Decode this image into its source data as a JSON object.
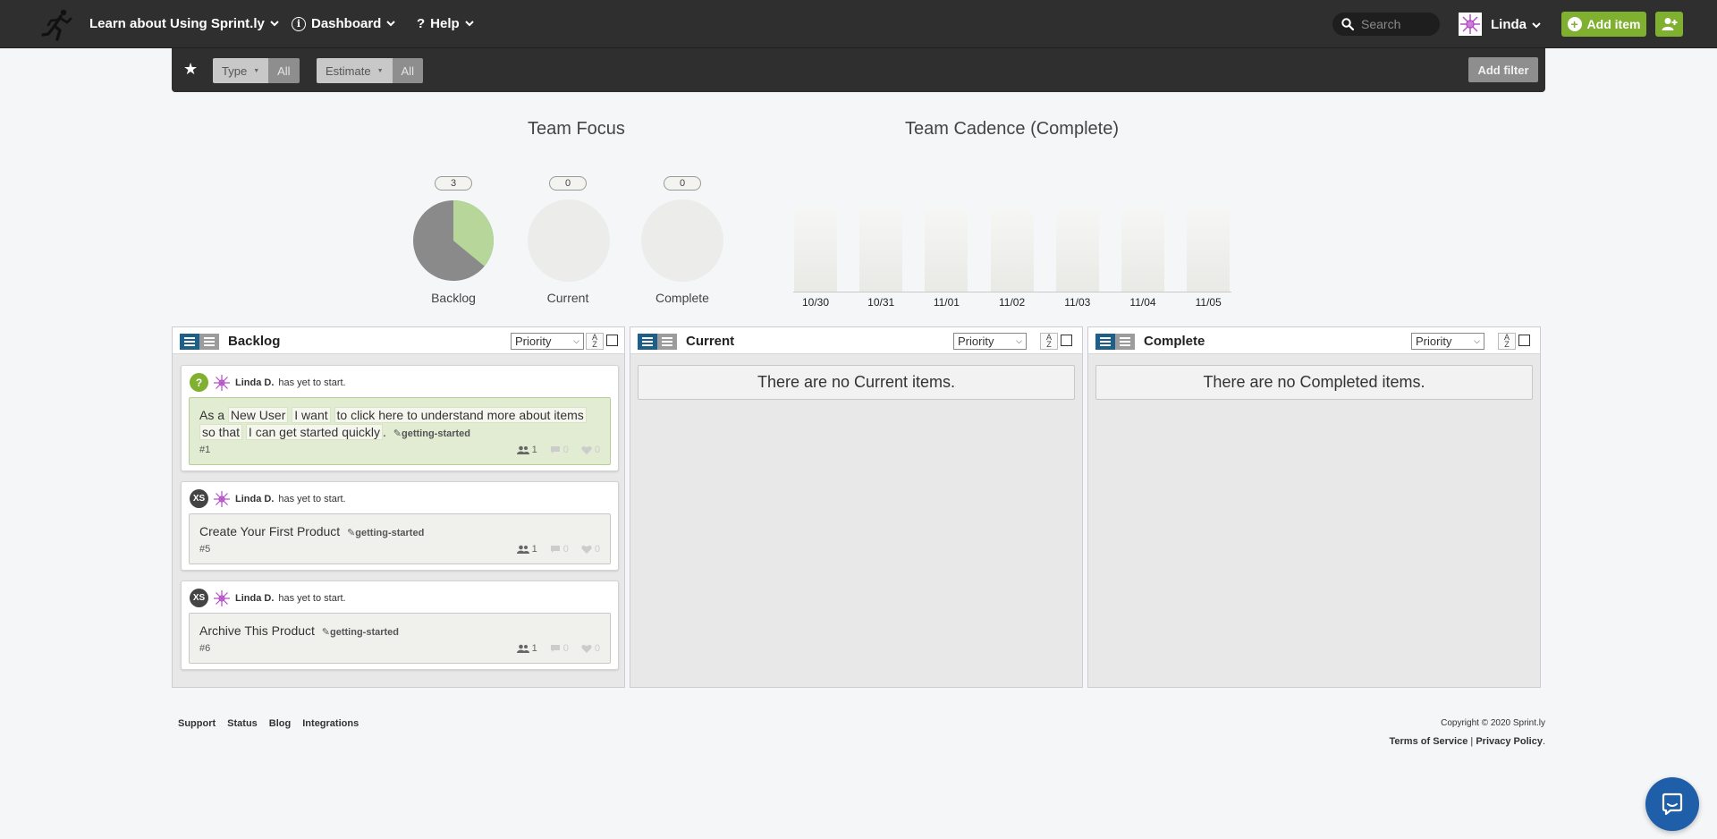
{
  "topnav": {
    "project": "Learn about Using Sprint.ly",
    "dashboard": "Dashboard",
    "help": "Help",
    "search_placeholder": "Search",
    "user": "Linda",
    "add_item": "Add item",
    "accent_color": "#7fb02f"
  },
  "filters": {
    "type_label": "Type",
    "type_value": "All",
    "estimate_label": "Estimate",
    "estimate_value": "All",
    "add_filter": "Add filter"
  },
  "team_focus": {
    "title": "Team Focus",
    "pies": [
      {
        "label": "Backlog",
        "count": "3",
        "fraction_green": 0.36
      },
      {
        "label": "Current",
        "count": "0"
      },
      {
        "label": "Complete",
        "count": "0"
      }
    ]
  },
  "team_cadence": {
    "title": "Team Cadence (Complete)",
    "dates": [
      "10/30",
      "10/31",
      "11/01",
      "11/02",
      "11/03",
      "11/04",
      "11/05"
    ]
  },
  "columns": {
    "backlog": {
      "title": "Backlog",
      "sort": "Priority",
      "cards": [
        {
          "size": "?",
          "owner": "Linda D.",
          "status": "has yet to start.",
          "text_parts": [
            "As a",
            "New User",
            "I want",
            "to click here to understand more about items",
            "so that",
            "I can get started quickly",
            "."
          ],
          "tag": "getting-started",
          "number": "#1",
          "stat_people": "1",
          "stat_comments": "0",
          "stat_likes": "0"
        },
        {
          "size": "XS",
          "owner": "Linda D.",
          "status": "has yet to start.",
          "title": "Create Your First Product",
          "tag": "getting-started",
          "number": "#5",
          "stat_people": "1",
          "stat_comments": "0",
          "stat_likes": "0"
        },
        {
          "size": "XS",
          "owner": "Linda D.",
          "status": "has yet to start.",
          "title": "Archive This Product",
          "tag": "getting-started",
          "number": "#6",
          "stat_people": "1",
          "stat_comments": "0",
          "stat_likes": "0"
        }
      ]
    },
    "current": {
      "title": "Current",
      "sort": "Priority",
      "empty": "There are no Current items."
    },
    "complete": {
      "title": "Complete",
      "sort": "Priority",
      "empty": "There are no Completed items."
    }
  },
  "sort_dir_glyph": "A Z",
  "footer": {
    "links": [
      "Support",
      "Status",
      "Blog",
      "Integrations"
    ],
    "copyright": "Copyright © 2020 Sprint.ly",
    "terms": "Terms of Service",
    "separator": "|",
    "privacy": "Privacy Policy",
    "period": "."
  }
}
